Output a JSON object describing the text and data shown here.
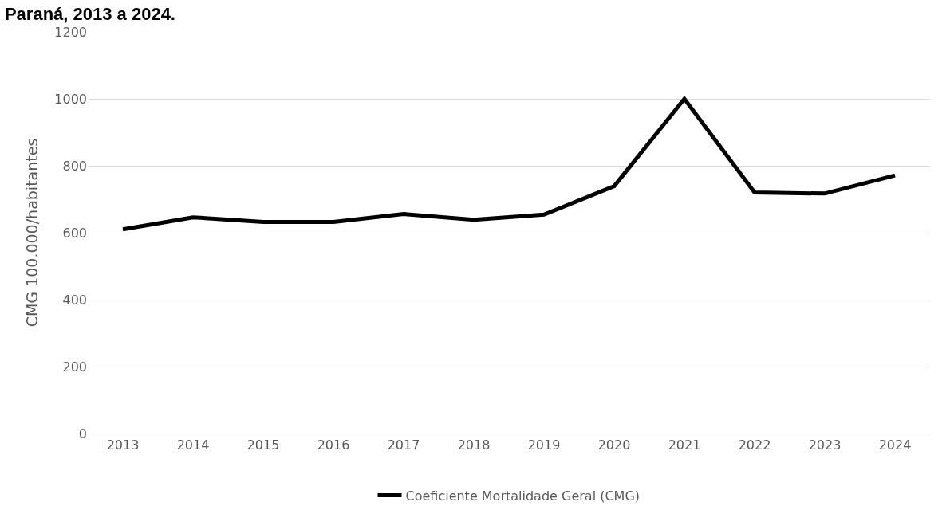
{
  "chart_data": {
    "type": "line",
    "title": "Paraná, 2013 a 2024.",
    "ylabel": "CMG 100.000/habitantes",
    "categories": [
      "2013",
      "2014",
      "2015",
      "2016",
      "2017",
      "2018",
      "2019",
      "2020",
      "2021",
      "2022",
      "2023",
      "2024"
    ],
    "series": [
      {
        "name": "Coeficiente Mortalidade Geral (CMG)",
        "color": "#000000",
        "values": [
          610,
          646,
          632,
          632,
          656,
          639,
          654,
          739,
          1000,
          720,
          717,
          771
        ]
      }
    ],
    "ylim": [
      0,
      1200
    ],
    "yticks": [
      0,
      200,
      400,
      600,
      800,
      1000,
      1200
    ],
    "grid": "y",
    "legend": "bottom",
    "marker": "none",
    "line_style": "solid"
  }
}
